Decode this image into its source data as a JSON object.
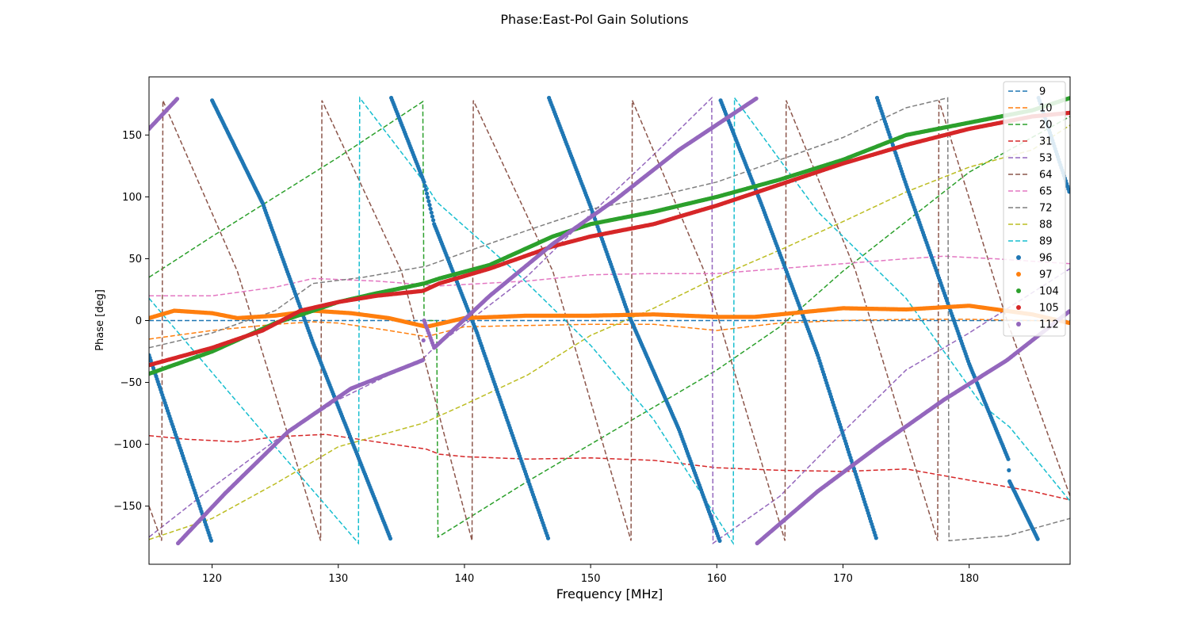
{
  "chart_data": {
    "type": "line",
    "title": "Phase:East-Pol Gain Solutions",
    "xlabel": "Frequency [MHz]",
    "ylabel": "Phase [deg]",
    "xlim": [
      115,
      188
    ],
    "ylim": [
      -197,
      197
    ],
    "xticks": [
      120,
      130,
      140,
      150,
      160,
      170,
      180
    ],
    "yticks": [
      -150,
      -100,
      -50,
      0,
      50,
      100,
      150
    ],
    "xtick_labels": [
      "120",
      "130",
      "140",
      "150",
      "160",
      "170",
      "180"
    ],
    "ytick_labels": [
      "−150",
      "−100",
      "−50",
      "0",
      "50",
      "100",
      "150"
    ],
    "grid": false,
    "legend_position": "top-right",
    "series": [
      {
        "name": "9",
        "style": "dashed",
        "color": "#1f77b4",
        "x": [
          115,
          188
        ],
        "y": [
          0,
          0
        ]
      },
      {
        "name": "10",
        "style": "dashed",
        "color": "#ff7f0e",
        "x": [
          115,
          120,
          125,
          128,
          130,
          134,
          137,
          140,
          145,
          150,
          155,
          160,
          165,
          170,
          175,
          180,
          185,
          188
        ],
        "y": [
          -15,
          -8,
          -3,
          -1,
          -2,
          -8,
          -13,
          -5,
          -4,
          -3,
          -3,
          -8,
          -2,
          0,
          1,
          1,
          0,
          -1
        ]
      },
      {
        "name": "20",
        "style": "dashed",
        "color": "#2ca02c",
        "x": [
          115,
          120,
          125,
          130,
          136.7,
          136.8,
          137.8,
          137.9,
          145,
          150,
          155,
          160,
          165,
          170,
          175,
          180,
          188
        ],
        "y": [
          35,
          68,
          100,
          132,
          177,
          0,
          0,
          -175,
          -130,
          -100,
          -70,
          -40,
          -5,
          40,
          80,
          120,
          165
        ]
      },
      {
        "name": "31",
        "style": "dashed",
        "color": "#d62728",
        "x": [
          115,
          118,
          122,
          125,
          129,
          133,
          137,
          138,
          140,
          145,
          150,
          155,
          160,
          165,
          170,
          175,
          180,
          185,
          188
        ],
        "y": [
          -93,
          -96,
          -98,
          -94,
          -92,
          -98,
          -104,
          -108,
          -110,
          -112,
          -111,
          -113,
          -119,
          -121,
          -122,
          -120,
          -129,
          -138,
          -145
        ]
      },
      {
        "name": "53",
        "style": "dashed",
        "color": "#9467bd",
        "x": [
          115,
          120,
          125,
          130,
          136.8,
          137.6,
          145,
          150,
          155,
          159.6,
          159.7,
          165,
          170,
          175,
          180,
          188
        ],
        "y": [
          -175,
          -135,
          -97,
          -64,
          -30,
          -22,
          36,
          86,
          134,
          180,
          -180,
          -142,
          -90,
          -40,
          -10,
          42
        ]
      },
      {
        "name": "64",
        "style": "dashed",
        "color": "#8c564b",
        "x": [
          115,
          116,
          116.1,
          122,
          128.6,
          128.7,
          135,
          140.6,
          140.7,
          147,
          153.2,
          153.3,
          159,
          165.4,
          165.5,
          171,
          177.5,
          177.6,
          183,
          188
        ],
        "y": [
          -150,
          -178,
          178,
          40,
          -178,
          178,
          40,
          -178,
          178,
          40,
          -178,
          178,
          40,
          -178,
          178,
          40,
          -178,
          178,
          0,
          -142
        ]
      },
      {
        "name": "65",
        "style": "dashed",
        "color": "#e377c2",
        "x": [
          115,
          120,
          125,
          128,
          133,
          138,
          145,
          150,
          155,
          160,
          165,
          170,
          175,
          178,
          182,
          188
        ],
        "y": [
          20,
          20,
          27,
          34,
          32,
          28,
          32,
          37,
          38,
          38,
          42,
          46,
          50,
          52,
          50,
          46
        ]
      },
      {
        "name": "72",
        "style": "dashed",
        "color": "#7f7f7f",
        "x": [
          115,
          120,
          125,
          128,
          132,
          137,
          140,
          145,
          150,
          155,
          160,
          165,
          170,
          175,
          178.3,
          178.4,
          183,
          188
        ],
        "y": [
          -22,
          -10,
          8,
          30,
          35,
          44,
          55,
          73,
          90,
          100,
          112,
          130,
          148,
          172,
          180,
          -178,
          -174,
          -160
        ]
      },
      {
        "name": "88",
        "style": "dashed",
        "color": "#bcbd22",
        "x": [
          115,
          120,
          125,
          130,
          136.7,
          140,
          145,
          150,
          155,
          160,
          165,
          170,
          175,
          180,
          185,
          188
        ],
        "y": [
          -177,
          -160,
          -132,
          -102,
          -83,
          -68,
          -44,
          -12,
          10,
          35,
          57,
          80,
          104,
          124,
          138,
          158
        ]
      },
      {
        "name": "89",
        "style": "dashed",
        "color": "#17becf",
        "x": [
          115,
          120,
          125,
          131.6,
          131.7,
          136.8,
          137.8,
          144,
          150,
          155,
          161.3,
          161.4,
          168,
          175,
          181,
          183.2,
          188
        ],
        "y": [
          18,
          -42,
          -102,
          -180,
          180,
          112,
          96,
          40,
          -20,
          -80,
          -180,
          180,
          88,
          18,
          -68,
          -86,
          -146
        ]
      },
      {
        "name": "96",
        "style": "dots",
        "color": "#1f77b4",
        "x": [
          115,
          120,
          120,
          124,
          128,
          134.2,
          134.2,
          136.8,
          137.6,
          141,
          146.7,
          146.7,
          150,
          153,
          157,
          160.3,
          160.3,
          163.5,
          168,
          172.7,
          172.7,
          175,
          180,
          183.1,
          183.2,
          185.5,
          185.5,
          188
        ],
        "y": [
          -28,
          -180,
          178,
          95,
          -18,
          -178,
          180,
          112,
          78,
          -10,
          -178,
          180,
          92,
          5,
          -88,
          -180,
          178,
          95,
          -28,
          -178,
          180,
          110,
          -35,
          -112,
          -130,
          -178,
          180,
          102
        ]
      },
      {
        "name": "97",
        "style": "dots",
        "color": "#ff7f0e",
        "x": [
          115,
          117,
          120,
          122,
          125,
          128,
          131,
          134,
          137,
          140,
          145,
          150,
          155,
          160,
          163,
          167,
          170,
          175,
          180,
          185,
          188
        ],
        "y": [
          2,
          8,
          6,
          2,
          4,
          8,
          6,
          2,
          -5,
          2,
          4,
          4,
          5,
          3,
          3,
          7,
          10,
          9,
          12,
          5,
          -2
        ]
      },
      {
        "name": "104",
        "style": "dots",
        "color": "#2ca02c",
        "x": [
          115,
          120,
          125,
          128,
          130,
          133,
          136.8,
          138,
          142,
          147,
          150,
          155,
          160,
          165,
          170,
          175,
          180,
          185,
          188
        ],
        "y": [
          -43,
          -25,
          -2,
          8,
          15,
          22,
          30,
          34,
          45,
          68,
          78,
          88,
          100,
          114,
          130,
          150,
          160,
          170,
          180
        ]
      },
      {
        "name": "105",
        "style": "dots",
        "color": "#d62728",
        "x": [
          115,
          120,
          124,
          127,
          130,
          133,
          136.7,
          138,
          142,
          147,
          150,
          155,
          160,
          165,
          170,
          175,
          180,
          185,
          188
        ],
        "y": [
          -36,
          -22,
          -8,
          8,
          15,
          20,
          24,
          30,
          42,
          60,
          68,
          78,
          93,
          110,
          127,
          142,
          155,
          165,
          168
        ]
      },
      {
        "name": "112",
        "style": "dots",
        "color": "#9467bd",
        "x": [
          115,
          117.3,
          117.3,
          121,
          126,
          131,
          136.7,
          136.8,
          137.6,
          142,
          147,
          152,
          157,
          163.2,
          163.2,
          168,
          173,
          178,
          183,
          188
        ],
        "y": [
          155,
          180,
          -180,
          -140,
          -90,
          -55,
          -32,
          0,
          -22,
          20,
          62,
          98,
          138,
          180,
          -180,
          -138,
          -100,
          -64,
          -32,
          8
        ]
      }
    ]
  }
}
